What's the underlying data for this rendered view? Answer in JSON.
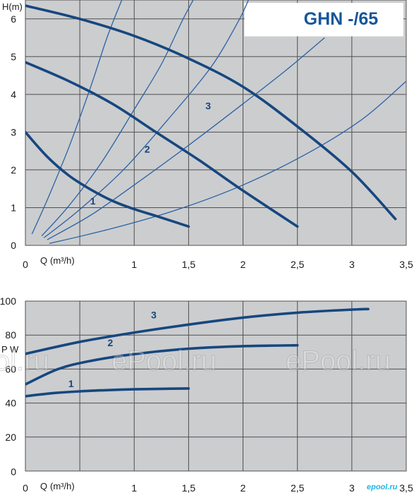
{
  "colors": {
    "plot_bg": "#cccdcf",
    "grid": "#505050",
    "curve": "#16477f",
    "system_curve": "#2a62a5",
    "title": "#16569a",
    "title_bg": "#ffffff"
  },
  "title": "GHN -/65",
  "watermarks": [
    "ol.ru",
    "ePool.ru",
    "ePool.ru"
  ],
  "logo": "epool.ru",
  "chart_data": [
    {
      "type": "line",
      "title": "GHN -/65",
      "ylabel": "H(m)",
      "xlabel_prefix": "Q",
      "xlabel_unit": "(m³/h)",
      "x_origin_label": "0",
      "xlim": [
        0,
        3.5
      ],
      "ylim": [
        0,
        6.5
      ],
      "x_ticks": [
        0.5,
        1,
        1.5,
        2,
        2.5,
        3,
        3.5
      ],
      "x_tick_labels": [
        "",
        "1",
        "1,5",
        "2",
        "2,5",
        "3",
        "3,5"
      ],
      "y_ticks": [
        0,
        1,
        2,
        3,
        4,
        5,
        6
      ],
      "y_tick_labels": [
        "0",
        "1",
        "2",
        "3",
        "4",
        "5",
        "6"
      ],
      "grid": true,
      "series": [
        {
          "name": "1",
          "x": [
            0,
            0.2,
            0.4,
            0.6,
            0.8,
            1.0,
            1.2,
            1.5
          ],
          "y": [
            3.0,
            2.35,
            1.85,
            1.48,
            1.18,
            0.96,
            0.78,
            0.5
          ],
          "label_at": [
            0.62,
            1.18
          ]
        },
        {
          "name": "2",
          "x": [
            0,
            0.4,
            0.8,
            1.2,
            1.6,
            2.0,
            2.5
          ],
          "y": [
            4.85,
            4.35,
            3.75,
            3.0,
            2.25,
            1.45,
            0.5
          ],
          "label_at": [
            1.12,
            2.55
          ]
        },
        {
          "name": "3",
          "x": [
            0,
            0.5,
            1.0,
            1.5,
            2.0,
            2.5,
            3.0,
            3.4
          ],
          "y": [
            6.35,
            6.0,
            5.55,
            4.95,
            4.2,
            3.15,
            1.95,
            0.7
          ],
          "label_at": [
            1.68,
            3.7
          ]
        }
      ],
      "system_curves": [
        {
          "x": [
            0.06,
            0.2,
            0.4,
            0.6,
            0.75,
            0.9,
            1.0
          ],
          "y": [
            0.3,
            1.2,
            2.6,
            4.2,
            5.5,
            6.6,
            7.3
          ]
        },
        {
          "x": [
            0.15,
            0.4,
            0.7,
            1.0,
            1.25,
            1.45,
            1.6
          ],
          "y": [
            0.25,
            1.05,
            2.2,
            3.6,
            4.8,
            6.0,
            6.8
          ]
        },
        {
          "x": [
            0.17,
            0.5,
            0.9,
            1.3,
            1.7,
            1.95,
            2.05
          ],
          "y": [
            0.2,
            0.95,
            2.0,
            3.3,
            4.7,
            5.9,
            6.5
          ]
        },
        {
          "x": [
            0.2,
            0.6,
            1.0,
            1.5,
            2.0,
            2.4,
            2.75
          ],
          "y": [
            0.15,
            0.8,
            1.6,
            2.65,
            3.75,
            4.65,
            5.5
          ]
        },
        {
          "x": [
            0.22,
            0.8,
            1.4,
            2.0,
            2.6,
            3.1,
            3.5
          ],
          "y": [
            0.05,
            0.45,
            0.95,
            1.6,
            2.45,
            3.35,
            4.35
          ]
        }
      ]
    },
    {
      "type": "line",
      "ylabel": "P W",
      "xlabel_prefix": "Q",
      "xlabel_unit": "(m³/h)",
      "x_origin_label": "0",
      "xlim": [
        0,
        3.5
      ],
      "ylim": [
        0,
        100
      ],
      "x_ticks": [
        0.5,
        1,
        1.5,
        2,
        2.5,
        3,
        3.5
      ],
      "x_tick_labels": [
        "",
        "1",
        "1,5",
        "2",
        "2,5",
        "3",
        "3,5"
      ],
      "y_ticks": [
        0,
        20,
        40,
        60,
        80,
        100
      ],
      "y_tick_labels": [
        "0",
        "20",
        "40",
        "60",
        "80",
        "100"
      ],
      "grid": true,
      "series": [
        {
          "name": "1",
          "x": [
            0,
            0.25,
            0.5,
            0.75,
            1.0,
            1.25,
            1.5
          ],
          "y": [
            44,
            45.8,
            46.9,
            47.6,
            48.1,
            48.4,
            48.6
          ],
          "label_at": [
            0.42,
            51.5
          ]
        },
        {
          "name": "2",
          "x": [
            0,
            0.3,
            0.6,
            1.0,
            1.5,
            2.0,
            2.5
          ],
          "y": [
            51,
            60,
            64.8,
            68.8,
            72,
            73.5,
            74
          ],
          "label_at": [
            0.78,
            75.5
          ]
        },
        {
          "name": "3",
          "x": [
            0,
            0.5,
            1.0,
            1.5,
            2.0,
            2.5,
            3.0,
            3.15
          ],
          "y": [
            69,
            76,
            81.5,
            86.2,
            90.3,
            93.2,
            95,
            95.3
          ],
          "label_at": [
            1.18,
            92
          ]
        }
      ]
    }
  ]
}
